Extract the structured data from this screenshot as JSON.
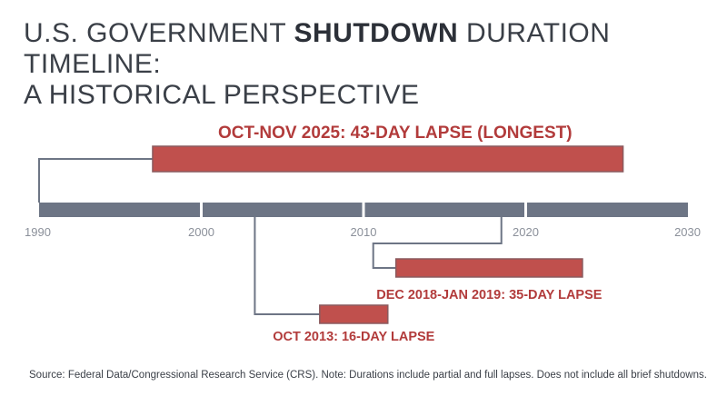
{
  "title": {
    "line1_prefix": "U.S. GOVERNMENT ",
    "line1_emphasis": "SHUTDOWN",
    "line1_suffix": " DURATION TIMELINE:",
    "line2": "A HISTORICAL PERSPECTIVE"
  },
  "chart_data": {
    "type": "timeline",
    "axis": {
      "xlim": [
        1990,
        2030
      ],
      "ticks": [
        1990,
        2000,
        2010,
        2020,
        2030
      ],
      "tick_labels": [
        "1990",
        "2000",
        "2010",
        "2020",
        "2030"
      ]
    },
    "events": [
      {
        "label": "OCT-NOV 2025: 43-DAY LAPSE (LONGEST)",
        "anchor_year": 1990,
        "bar_start": 1997,
        "bar_end": 2026,
        "duration_days": 43,
        "position": "above"
      },
      {
        "label": "DEC 2018-JAN 2019: 35-DAY LAPSE",
        "anchor_year": 2018.5,
        "bar_start": 2012,
        "bar_end": 2023.5,
        "duration_days": 35,
        "position": "below"
      },
      {
        "label": "OCT 2013: 16-DAY LAPSE",
        "anchor_year": 2003.3,
        "bar_start": 2007.3,
        "bar_end": 2011.5,
        "duration_days": 16,
        "position": "below"
      }
    ],
    "colors": {
      "axis": "#6d7585",
      "bar": "#c0504d",
      "bar_outline": "#8a5a5e",
      "connector": "#6d7585",
      "label": "#b23b3b"
    }
  },
  "source": "Source: Federal Data/Congressional Research Service (CRS). Note: Durations include partial and full lapses. Does not include all brief shutdowns."
}
